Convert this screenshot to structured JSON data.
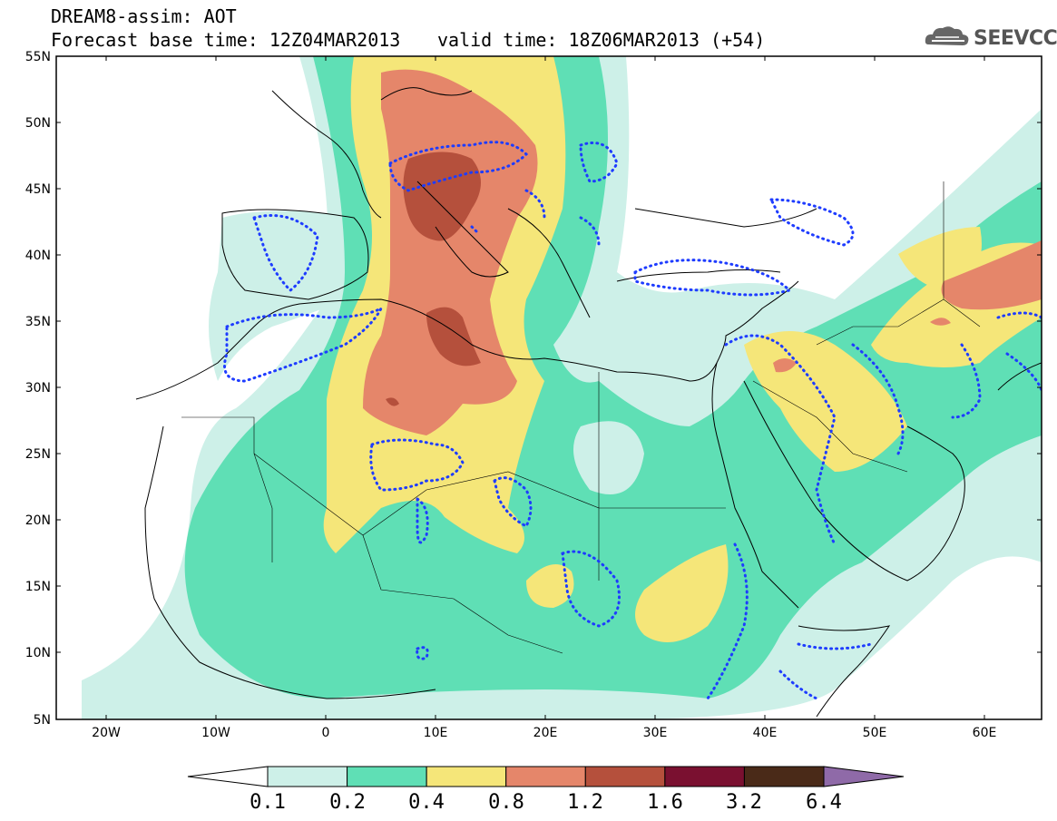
{
  "header": {
    "line1": "DREAM8-assim: AOT",
    "line2_left": "Forecast base time: 12Z04MAR2013",
    "line2_right": "valid time: 18Z06MAR2013 (+54)"
  },
  "logo": {
    "text": "SEEVCCC",
    "icon": "cloud-icon"
  },
  "map": {
    "lon_labels": [
      "20W",
      "10W",
      "0",
      "10E",
      "20E",
      "30E",
      "40E",
      "50E",
      "60E"
    ],
    "lat_labels": [
      "55N",
      "50N",
      "45N",
      "40N",
      "35N",
      "30N",
      "25N",
      "20N",
      "15N",
      "10N",
      "5N"
    ]
  },
  "colorbar": {
    "labels": [
      "0.1",
      "0.2",
      "0.4",
      "0.8",
      "1.2",
      "1.6",
      "3.2",
      "6.4"
    ],
    "colors": [
      "#cdf0e8",
      "#5fdfb5",
      "#f5e679",
      "#e5866a",
      "#b5503c",
      "#7a1030",
      "#4a2a18"
    ],
    "low_color": "#ffffff",
    "high_color": "#8f6aa8"
  }
}
